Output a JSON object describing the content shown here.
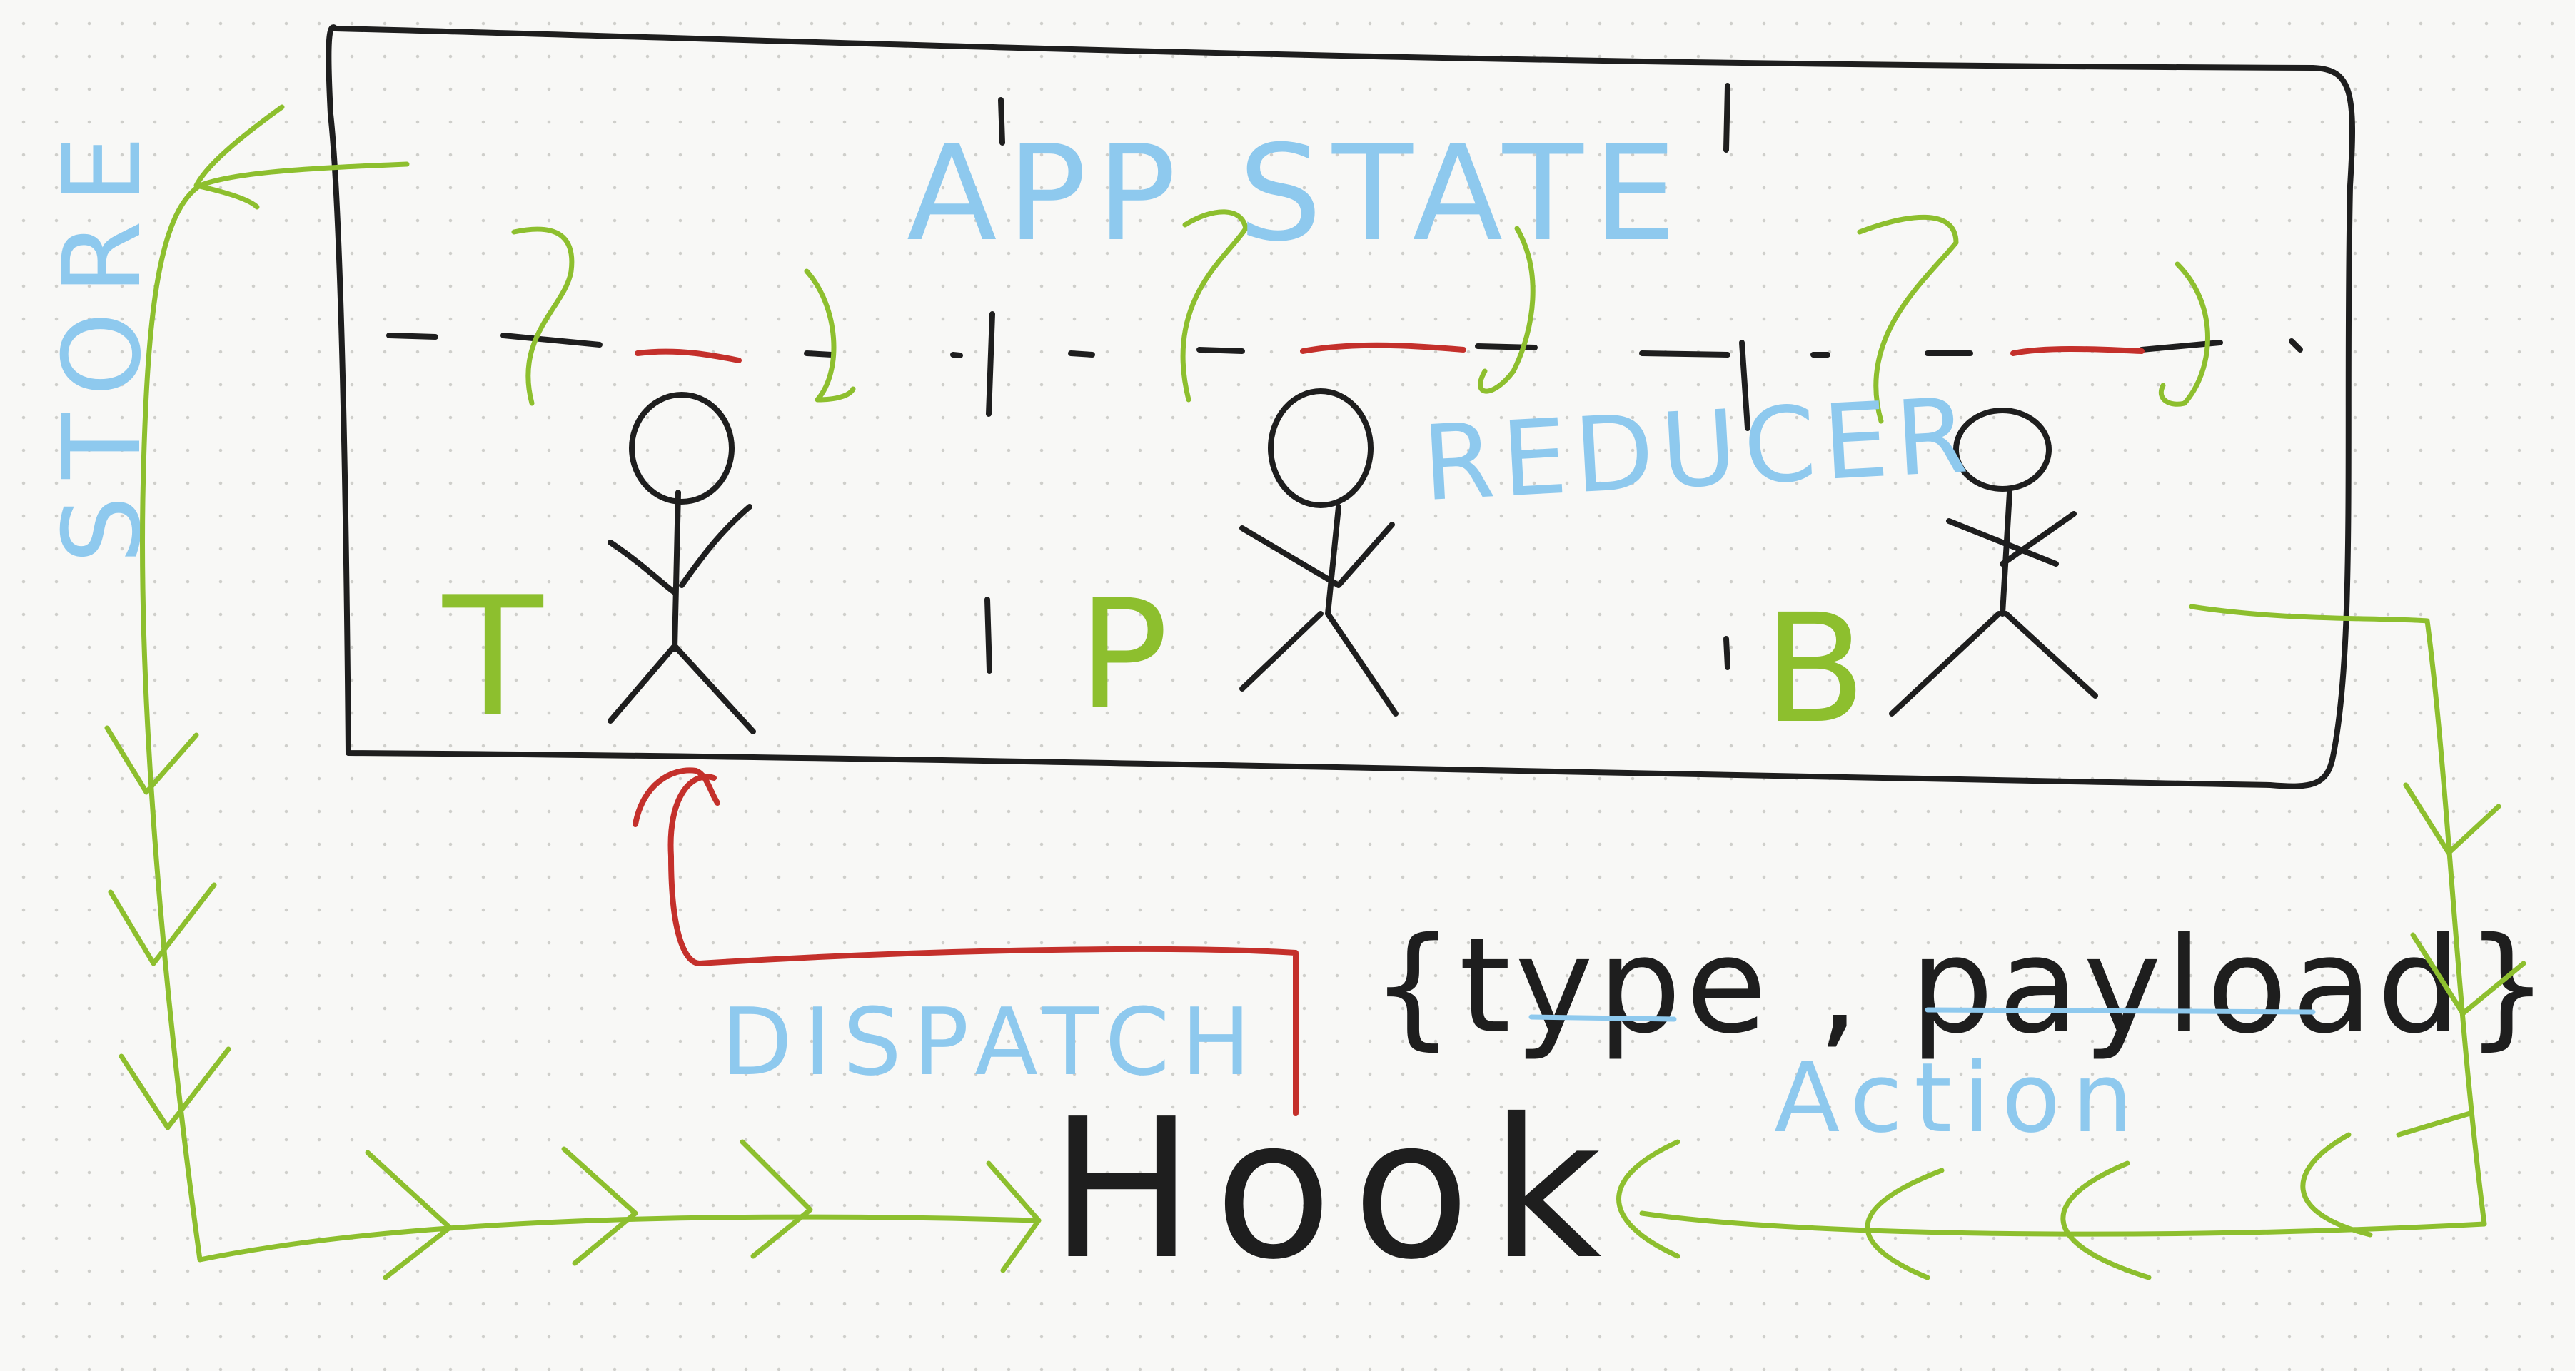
{
  "labels": {
    "app_state": "APP STATE",
    "reducer": "REDUCER",
    "dispatch": "DISPATCH",
    "action_object": "{type , payload}",
    "action": "Action",
    "hook": "Hook",
    "store": "STORE",
    "people": [
      "T",
      "P",
      "B"
    ]
  },
  "colors": {
    "black": "#1e1e1e",
    "green": "#8dbf2e",
    "red": "#c4302b",
    "blue": "#8ec9ee"
  }
}
